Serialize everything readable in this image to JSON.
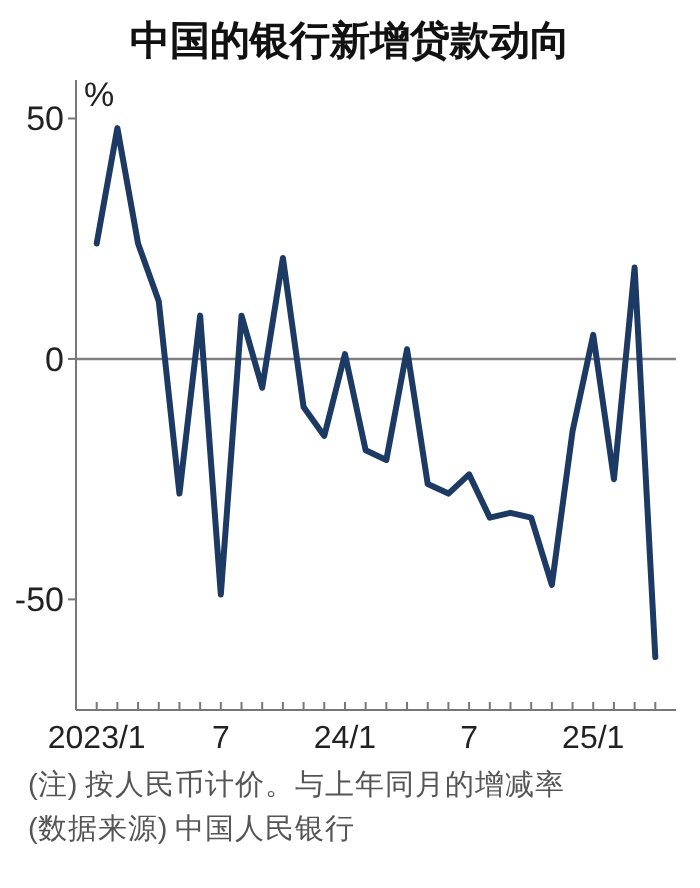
{
  "chart_data": {
    "type": "line",
    "title": "中国的银行新增贷款动向",
    "ylabel": "%",
    "x": [
      "2023-01",
      "2023-02",
      "2023-03",
      "2023-04",
      "2023-05",
      "2023-06",
      "2023-07",
      "2023-08",
      "2023-09",
      "2023-10",
      "2023-11",
      "2023-12",
      "2024-01",
      "2024-02",
      "2024-03",
      "2024-04",
      "2024-05",
      "2024-06",
      "2024-07",
      "2024-08",
      "2024-09",
      "2024-10",
      "2024-11",
      "2024-12",
      "2025-01",
      "2025-02",
      "2025-03",
      "2025-04"
    ],
    "series": [
      {
        "color": "#1c3a63",
        "values": [
          24,
          48,
          24,
          12,
          -28,
          9,
          -49,
          9,
          -6,
          21,
          -10,
          -16,
          1,
          -19,
          -21,
          2,
          -26,
          -28,
          -24,
          -33,
          -32,
          -33,
          -47,
          -15,
          5,
          -25,
          19,
          -62
        ]
      }
    ],
    "xlim": [
      "2022-12",
      "2025-05"
    ],
    "xticks": [
      {
        "value": "2023-01",
        "label": "2023/1"
      },
      {
        "value": "2023-02",
        "label": null
      },
      {
        "value": "2023-03",
        "label": null
      },
      {
        "value": "2023-04",
        "label": null
      },
      {
        "value": "2023-05",
        "label": null
      },
      {
        "value": "2023-06",
        "label": null
      },
      {
        "value": "2023-07",
        "label": "7"
      },
      {
        "value": "2023-08",
        "label": null
      },
      {
        "value": "2023-09",
        "label": null
      },
      {
        "value": "2023-10",
        "label": null
      },
      {
        "value": "2023-11",
        "label": null
      },
      {
        "value": "2023-12",
        "label": null
      },
      {
        "value": "2024-01",
        "label": "24/1"
      },
      {
        "value": "2024-02",
        "label": null
      },
      {
        "value": "2024-03",
        "label": null
      },
      {
        "value": "2024-04",
        "label": null
      },
      {
        "value": "2024-05",
        "label": null
      },
      {
        "value": "2024-06",
        "label": null
      },
      {
        "value": "2024-07",
        "label": "7"
      },
      {
        "value": "2024-08",
        "label": null
      },
      {
        "value": "2024-09",
        "label": null
      },
      {
        "value": "2024-10",
        "label": null
      },
      {
        "value": "2024-11",
        "label": null
      },
      {
        "value": "2024-12",
        "label": null
      },
      {
        "value": "2025-01",
        "label": "25/1"
      },
      {
        "value": "2025-02",
        "label": null
      },
      {
        "value": "2025-03",
        "label": null
      },
      {
        "value": "2025-04",
        "label": null
      }
    ],
    "ylim": [
      -73,
      58
    ],
    "yticks": [
      50,
      0,
      -50
    ],
    "ref_lines": [
      {
        "axis": "y",
        "value": 0,
        "color": "#808080"
      }
    ],
    "annotations": [
      "(注) 按人民币计价。与上年同月的增减率",
      "(数据来源) 中国人民银行"
    ],
    "grid": false,
    "marker": "none",
    "line_style": "solid"
  }
}
